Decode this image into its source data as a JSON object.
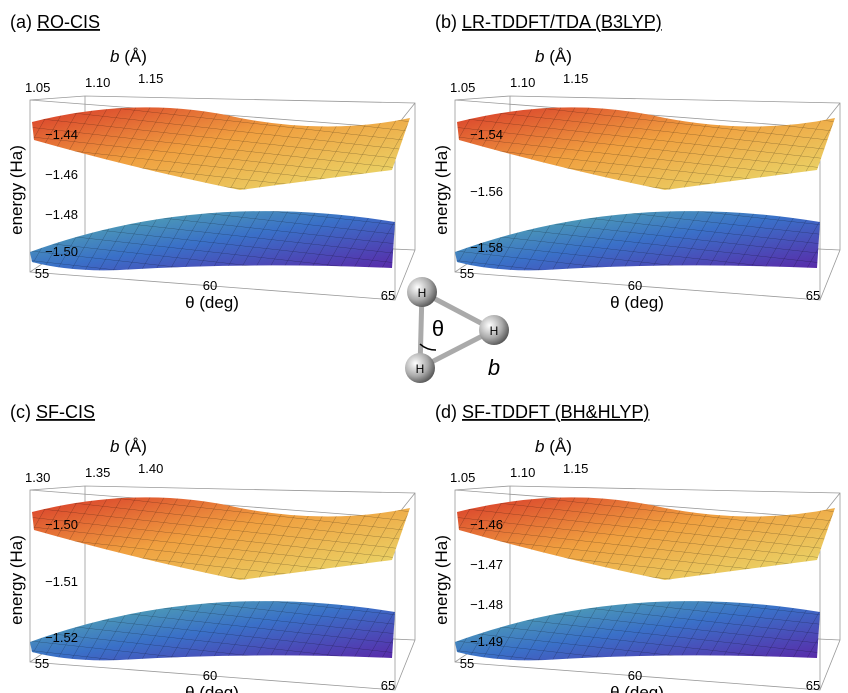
{
  "panels": [
    {
      "label": "(a)",
      "method": "RO-CIS",
      "b_label": {
        "symbol": "b",
        "unit": "(Å)"
      },
      "b_ticks": [
        "1.05",
        "1.10",
        "1.15"
      ],
      "energy_label": "energy (Ha)",
      "energy_ticks": [
        "−1.44",
        "−1.46",
        "−1.48",
        "−1.50"
      ],
      "theta_label": "θ (deg)",
      "theta_ticks": [
        "55",
        "60",
        "65"
      ]
    },
    {
      "label": "(b)",
      "method": "LR-TDDFT/TDA (B3LYP)",
      "b_label": {
        "symbol": "b",
        "unit": "(Å)"
      },
      "b_ticks": [
        "1.05",
        "1.10",
        "1.15"
      ],
      "energy_label": "energy (Ha)",
      "energy_ticks": [
        "−1.54",
        "−1.56",
        "−1.58"
      ],
      "theta_label": "θ (deg)",
      "theta_ticks": [
        "55",
        "60",
        "65"
      ]
    },
    {
      "label": "(c)",
      "method": "SF-CIS",
      "b_label": {
        "symbol": "b",
        "unit": "(Å)"
      },
      "b_ticks": [
        "1.30",
        "1.35",
        "1.40"
      ],
      "energy_label": "energy (Ha)",
      "energy_ticks": [
        "−1.50",
        "−1.51",
        "−1.52"
      ],
      "theta_label": "θ (deg)",
      "theta_ticks": [
        "55",
        "60",
        "65"
      ]
    },
    {
      "label": "(d)",
      "method": "SF-TDDFT (BH&HLYP)",
      "b_label": {
        "symbol": "b",
        "unit": "(Å)"
      },
      "b_ticks": [
        "1.05",
        "1.10",
        "1.15"
      ],
      "energy_label": "energy (Ha)",
      "energy_ticks": [
        "−1.46",
        "−1.47",
        "−1.48",
        "−1.49"
      ],
      "theta_label": "θ (deg)",
      "theta_ticks": [
        "55",
        "60",
        "65"
      ]
    }
  ],
  "molecule": {
    "atoms": [
      "H",
      "H",
      "H"
    ],
    "angle": "θ",
    "bond": "b"
  }
}
